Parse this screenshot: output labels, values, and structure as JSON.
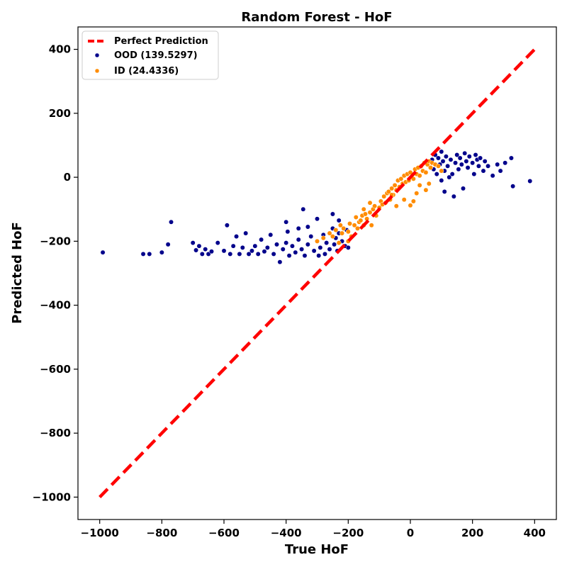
{
  "chart_data": {
    "type": "scatter",
    "title": "Random Forest - HoF",
    "xlabel": "True HoF",
    "ylabel": "Predicted HoF",
    "xlim": [
      -1070,
      470
    ],
    "ylim": [
      -1070,
      470
    ],
    "xticks": [
      -1000,
      -800,
      -600,
      -400,
      -200,
      0,
      200,
      400
    ],
    "yticks": [
      -1000,
      -800,
      -600,
      -400,
      -200,
      0,
      200,
      400
    ],
    "xtick_labels": [
      "−1000",
      "−800",
      "−600",
      "−400",
      "−200",
      "0",
      "200",
      "400"
    ],
    "ytick_labels": [
      "−1000",
      "−800",
      "−600",
      "−400",
      "−200",
      "0",
      "200",
      "400"
    ],
    "grid": false,
    "legend_position": "top-left",
    "reference_line": {
      "name": "Perfect Prediction",
      "points": [
        [
          -1000,
          -1000
        ],
        [
          400,
          400
        ]
      ],
      "color": "#ff0000",
      "style": "dashed"
    },
    "series": [
      {
        "name": "OOD (139.5297)",
        "color": "#00008b",
        "points": [
          [
            -990,
            -235
          ],
          [
            -860,
            -240
          ],
          [
            -840,
            -240
          ],
          [
            -800,
            -235
          ],
          [
            -780,
            -210
          ],
          [
            -770,
            -140
          ],
          [
            -700,
            -205
          ],
          [
            -690,
            -228
          ],
          [
            -680,
            -215
          ],
          [
            -670,
            -240
          ],
          [
            -660,
            -225
          ],
          [
            -650,
            -240
          ],
          [
            -640,
            -232
          ],
          [
            -620,
            -205
          ],
          [
            -600,
            -230
          ],
          [
            -590,
            -150
          ],
          [
            -580,
            -240
          ],
          [
            -570,
            -215
          ],
          [
            -560,
            -185
          ],
          [
            -550,
            -240
          ],
          [
            -540,
            -220
          ],
          [
            -530,
            -175
          ],
          [
            -520,
            -240
          ],
          [
            -510,
            -230
          ],
          [
            -500,
            -215
          ],
          [
            -490,
            -240
          ],
          [
            -480,
            -195
          ],
          [
            -470,
            -232
          ],
          [
            -460,
            -220
          ],
          [
            -450,
            -180
          ],
          [
            -440,
            -240
          ],
          [
            -430,
            -210
          ],
          [
            -420,
            -265
          ],
          [
            -410,
            -225
          ],
          [
            -400,
            -205
          ],
          [
            -395,
            -170
          ],
          [
            -390,
            -245
          ],
          [
            -380,
            -215
          ],
          [
            -370,
            -235
          ],
          [
            -360,
            -195
          ],
          [
            -350,
            -225
          ],
          [
            -345,
            -100
          ],
          [
            -340,
            -245
          ],
          [
            -330,
            -210
          ],
          [
            -320,
            -185
          ],
          [
            -310,
            -230
          ],
          [
            -300,
            -200
          ],
          [
            -295,
            -245
          ],
          [
            -290,
            -220
          ],
          [
            -280,
            -180
          ],
          [
            -275,
            -240
          ],
          [
            -270,
            -205
          ],
          [
            -260,
            -225
          ],
          [
            -250,
            -160
          ],
          [
            -245,
            -210
          ],
          [
            -240,
            -190
          ],
          [
            -235,
            -230
          ],
          [
            -230,
            -175
          ],
          [
            -220,
            -200
          ],
          [
            -210,
            -215
          ],
          [
            -205,
            -165
          ],
          [
            -200,
            -220
          ],
          [
            -250,
            -115
          ],
          [
            -230,
            -135
          ],
          [
            -400,
            -140
          ],
          [
            -360,
            -160
          ],
          [
            -330,
            -155
          ],
          [
            -300,
            -130
          ],
          [
            70,
            55
          ],
          [
            75,
            25
          ],
          [
            80,
            70
          ],
          [
            85,
            10
          ],
          [
            90,
            60
          ],
          [
            95,
            40
          ],
          [
            100,
            80
          ],
          [
            100,
            -10
          ],
          [
            105,
            50
          ],
          [
            110,
            20
          ],
          [
            110,
            -45
          ],
          [
            115,
            65
          ],
          [
            120,
            35
          ],
          [
            125,
            0
          ],
          [
            130,
            55
          ],
          [
            135,
            10
          ],
          [
            140,
            -60
          ],
          [
            145,
            45
          ],
          [
            150,
            70
          ],
          [
            155,
            25
          ],
          [
            160,
            60
          ],
          [
            165,
            40
          ],
          [
            170,
            -35
          ],
          [
            175,
            75
          ],
          [
            180,
            50
          ],
          [
            185,
            30
          ],
          [
            190,
            65
          ],
          [
            200,
            45
          ],
          [
            205,
            10
          ],
          [
            210,
            70
          ],
          [
            215,
            55
          ],
          [
            220,
            35
          ],
          [
            225,
            60
          ],
          [
            235,
            20
          ],
          [
            240,
            50
          ],
          [
            250,
            35
          ],
          [
            265,
            5
          ],
          [
            280,
            40
          ],
          [
            290,
            20
          ],
          [
            305,
            45
          ],
          [
            325,
            60
          ],
          [
            330,
            -28
          ],
          [
            385,
            -12
          ]
        ]
      },
      {
        "name": "ID (24.4336)",
        "color": "#ff8c00",
        "points": [
          [
            -300,
            -200
          ],
          [
            -280,
            -190
          ],
          [
            -260,
            -175
          ],
          [
            -250,
            -185
          ],
          [
            -240,
            -165
          ],
          [
            -230,
            -205
          ],
          [
            -225,
            -150
          ],
          [
            -220,
            -175
          ],
          [
            -215,
            -160
          ],
          [
            -200,
            -170
          ],
          [
            -195,
            -145
          ],
          [
            -190,
            -185
          ],
          [
            -180,
            -150
          ],
          [
            -175,
            -125
          ],
          [
            -170,
            -160
          ],
          [
            -165,
            -140
          ],
          [
            -160,
            -135
          ],
          [
            -155,
            -120
          ],
          [
            -150,
            -150
          ],
          [
            -145,
            -115
          ],
          [
            -140,
            -130
          ],
          [
            -130,
            -110
          ],
          [
            -125,
            -150
          ],
          [
            -120,
            -100
          ],
          [
            -115,
            -90
          ],
          [
            -110,
            -120
          ],
          [
            -100,
            -95
          ],
          [
            -95,
            -75
          ],
          [
            -90,
            -85
          ],
          [
            -85,
            -60
          ],
          [
            -80,
            -80
          ],
          [
            -75,
            -50
          ],
          [
            -70,
            -45
          ],
          [
            -65,
            -70
          ],
          [
            -60,
            -35
          ],
          [
            -55,
            -55
          ],
          [
            -50,
            -25
          ],
          [
            -45,
            -40
          ],
          [
            -40,
            -10
          ],
          [
            -35,
            -30
          ],
          [
            -30,
            -5
          ],
          [
            -25,
            -20
          ],
          [
            -20,
            5
          ],
          [
            -15,
            -15
          ],
          [
            -10,
            10
          ],
          [
            -5,
            -10
          ],
          [
            0,
            15
          ],
          [
            5,
            0
          ],
          [
            10,
            -5
          ],
          [
            15,
            25
          ],
          [
            20,
            10
          ],
          [
            25,
            30
          ],
          [
            30,
            5
          ],
          [
            35,
            35
          ],
          [
            40,
            20
          ],
          [
            45,
            45
          ],
          [
            50,
            15
          ],
          [
            55,
            40
          ],
          [
            60,
            50
          ],
          [
            65,
            30
          ],
          [
            70,
            45
          ],
          [
            80,
            40
          ],
          [
            90,
            35
          ],
          [
            100,
            20
          ],
          [
            30,
            -25
          ],
          [
            20,
            -50
          ],
          [
            10,
            -75
          ],
          [
            0,
            -88
          ],
          [
            -20,
            -70
          ],
          [
            -45,
            -90
          ],
          [
            50,
            -40
          ],
          [
            60,
            -20
          ],
          [
            -130,
            -80
          ],
          [
            -200,
            -200
          ],
          [
            -150,
            -100
          ],
          [
            -60,
            -55
          ]
        ]
      }
    ]
  }
}
